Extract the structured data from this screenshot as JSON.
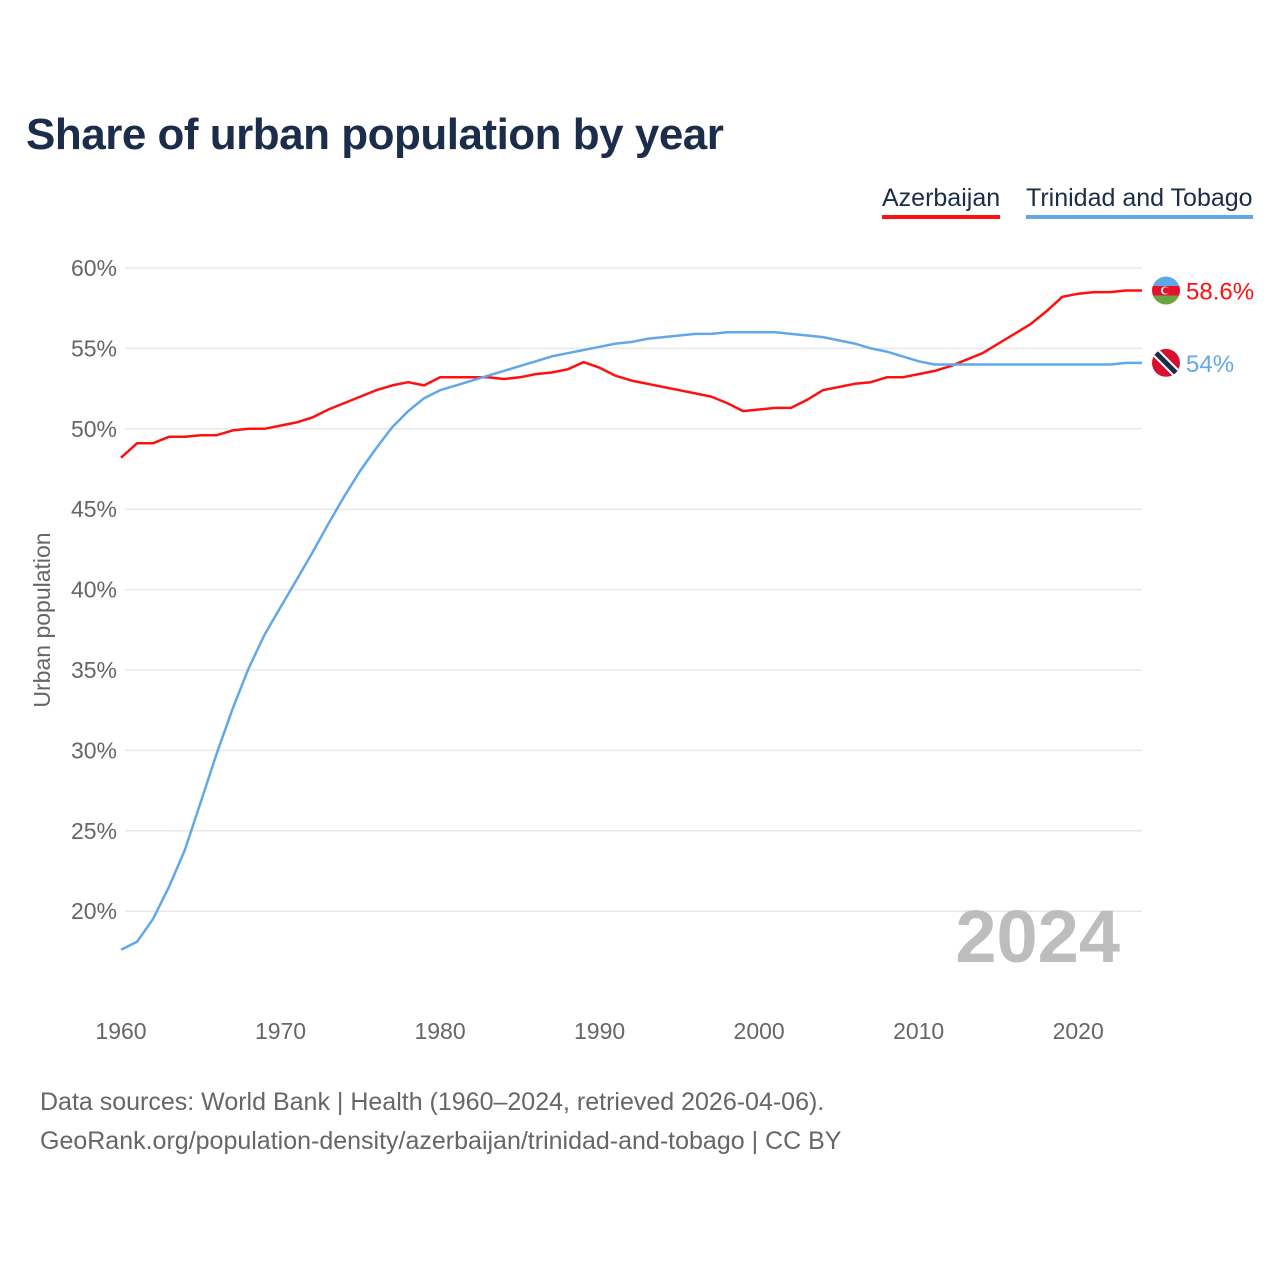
{
  "chart_data": {
    "type": "line",
    "title": "Share of urban population by year",
    "ylabel": "Urban population",
    "xlabel": "",
    "ylim": [
      15,
      60
    ],
    "xlim": [
      1960,
      2024
    ],
    "yticks": [
      20,
      25,
      30,
      35,
      40,
      45,
      50,
      55,
      60
    ],
    "ytick_labels": [
      "20%",
      "25%",
      "30%",
      "35%",
      "40%",
      "45%",
      "50%",
      "55%",
      "60%"
    ],
    "xticks": [
      1960,
      1970,
      1980,
      1990,
      2000,
      2010,
      2020
    ],
    "xtick_labels": [
      "1960",
      "1970",
      "1980",
      "1990",
      "2000",
      "2010",
      "2020"
    ],
    "grid": true,
    "legend_position": "top-right",
    "year_watermark": "2024",
    "start_year": 1960,
    "series": [
      {
        "name": "Azerbaijan",
        "color": "#ff1010",
        "end_label": "58.6%",
        "flag": "azerbaijan-flag",
        "values": [
          48.2,
          49.1,
          49.1,
          49.5,
          49.5,
          49.6,
          49.6,
          49.9,
          50.0,
          50.0,
          50.2,
          50.4,
          50.7,
          51.2,
          51.6,
          52.0,
          52.4,
          52.7,
          52.9,
          52.7,
          53.2,
          53.2,
          53.2,
          53.2,
          53.1,
          53.2,
          53.4,
          53.5,
          53.7,
          54.15,
          53.8,
          53.3,
          53.0,
          52.8,
          52.6,
          52.4,
          52.2,
          52.0,
          51.6,
          51.1,
          51.2,
          51.3,
          51.3,
          51.8,
          52.4,
          52.6,
          52.8,
          52.9,
          53.2,
          53.2,
          53.4,
          53.6,
          53.9,
          54.3,
          54.7,
          55.3,
          55.9,
          56.5,
          57.3,
          58.2,
          58.4,
          58.5,
          58.5,
          58.6,
          58.6
        ]
      },
      {
        "name": "Trinidad and Tobago",
        "color": "#62a8e8",
        "end_label": "54%",
        "flag": "trinidad-and-tobago-flag",
        "values": [
          17.6,
          18.1,
          19.5,
          21.5,
          23.8,
          26.8,
          29.8,
          32.6,
          35.1,
          37.2,
          38.9,
          40.6,
          42.3,
          44.1,
          45.8,
          47.4,
          48.8,
          50.1,
          51.1,
          51.9,
          52.4,
          52.7,
          53.0,
          53.3,
          53.6,
          53.9,
          54.2,
          54.5,
          54.7,
          54.9,
          55.1,
          55.3,
          55.4,
          55.6,
          55.7,
          55.8,
          55.9,
          55.9,
          56.0,
          56.0,
          56.0,
          56.0,
          55.9,
          55.8,
          55.7,
          55.5,
          55.3,
          55.0,
          54.8,
          54.5,
          54.2,
          54.0,
          54.0,
          54.0,
          54.0,
          54.0,
          54.0,
          54.0,
          54.0,
          54.0,
          54.0,
          54.0,
          54.0,
          54.1,
          54.1
        ]
      }
    ]
  },
  "footer": {
    "line1": "Data sources: World Bank | Health (1960–2024, retrieved 2026-04-06).",
    "line2": "GeoRank.org/population-density/azerbaijan/trinidad-and-tobago | CC BY"
  }
}
